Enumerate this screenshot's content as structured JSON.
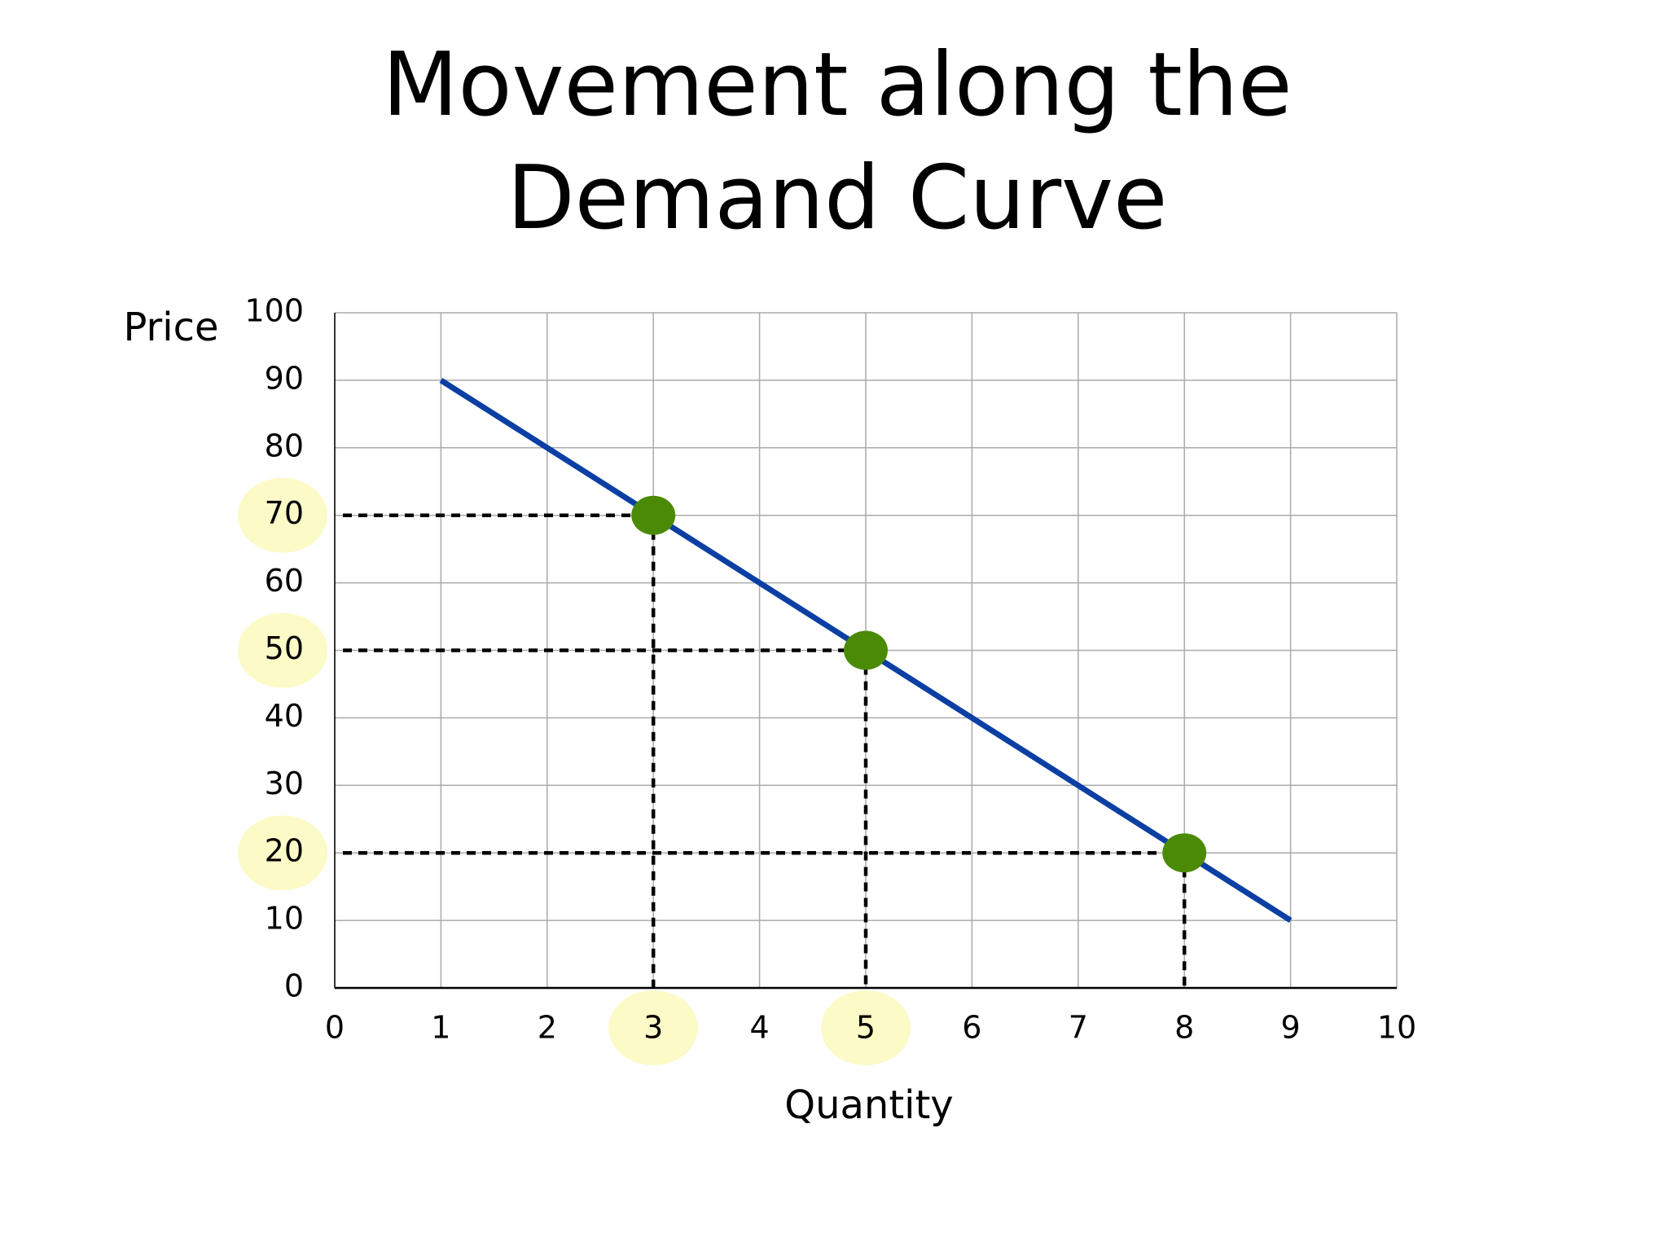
{
  "chart_data": {
    "type": "line",
    "title": [
      "Movement along the",
      "Demand Curve"
    ],
    "x_label": "Quantity",
    "y_label": "Price",
    "xlim": [
      0,
      10
    ],
    "ylim": [
      0,
      100
    ],
    "xticks": [
      0,
      1,
      2,
      3,
      4,
      5,
      6,
      7,
      8,
      9,
      10
    ],
    "yticks": [
      0,
      10,
      20,
      30,
      40,
      50,
      60,
      70,
      80,
      90,
      100
    ],
    "grid": true,
    "series": [
      {
        "x": [
          1,
          9
        ],
        "values": [
          90,
          10
        ],
        "color": "#0b3fa3"
      }
    ],
    "points": {
      "x": [
        3,
        5,
        8
      ],
      "values": [
        70,
        50,
        20
      ],
      "color": "#4b8a05"
    },
    "highlighted_xticks": [
      3,
      5
    ],
    "highlighted_yticks": [
      70,
      50,
      20
    ],
    "highlight_color": "#fcfac6"
  }
}
